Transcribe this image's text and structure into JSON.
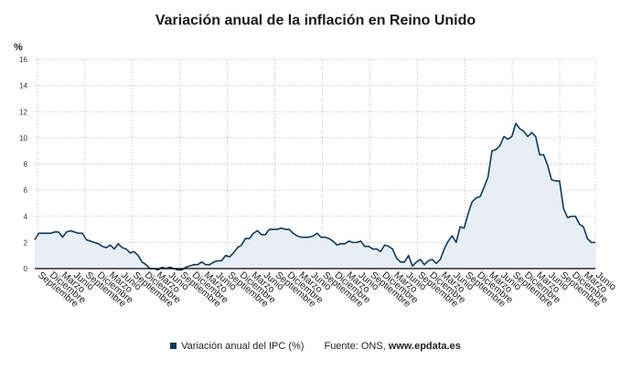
{
  "title": "Variación anual de la inflación en Reino Unido",
  "unit_label": "%",
  "legend": {
    "series_label": "Variación anual del IPC (%)",
    "source_prefix": "Fuente: ONS, ",
    "source_site": "www.epdata.es"
  },
  "colors": {
    "line": "#0d3a5c",
    "area": "#e7eef6",
    "grid": "#b5b5b5",
    "axis": "#000000"
  },
  "chart_data": {
    "type": "area",
    "title": "Variación anual de la inflación en Reino Unido",
    "xlabel": "",
    "ylabel": "%",
    "ylim": [
      0,
      16
    ],
    "yticks": [
      0,
      2,
      4,
      6,
      8,
      10,
      12,
      14,
      16
    ],
    "grid": true,
    "legend_position": "bottom",
    "x_tick_labels": [
      "Septiembre",
      "Diciembre",
      "Marzo",
      "Junio",
      "Septiembre",
      "Diciembre",
      "Marzo",
      "Junio",
      "Septiembre",
      "Diciembre",
      "Marzo",
      "Junio",
      "Septiembre",
      "Diciembre",
      "Marzo",
      "Junio",
      "Septiembre",
      "Diciembre",
      "Marzo",
      "Junio",
      "Septiembre",
      "Diciembre",
      "Marzo",
      "Junio",
      "Septiembre",
      "Diciembre",
      "Marzo",
      "Junio",
      "Septiembre",
      "Diciembre",
      "Marzo",
      "Junio",
      "Septiembre",
      "Diciembre",
      "Marzo",
      "Junio",
      "Septiembre",
      "Diciembre",
      "Marzo",
      "Junio",
      "Septiembre",
      "Diciembre",
      "Marzo",
      "Junio",
      "Septiembre",
      "Diciembre",
      "Marzo",
      "Junio"
    ],
    "series": [
      {
        "name": "Variación anual del IPC (%)",
        "values": [
          2.2,
          2.7,
          2.7,
          2.7,
          2.7,
          2.8,
          2.8,
          2.4,
          2.8,
          2.9,
          2.8,
          2.7,
          2.7,
          2.2,
          2.1,
          2.0,
          1.9,
          1.7,
          1.6,
          1.8,
          1.5,
          1.9,
          1.6,
          1.5,
          1.2,
          1.3,
          1.0,
          0.5,
          0.3,
          0.0,
          0.0,
          -0.1,
          0.1,
          0.0,
          0.1,
          0.0,
          -0.1,
          -0.1,
          0.1,
          0.2,
          0.3,
          0.3,
          0.5,
          0.3,
          0.3,
          0.5,
          0.6,
          0.6,
          1.0,
          0.9,
          1.2,
          1.6,
          1.8,
          2.3,
          2.3,
          2.7,
          2.9,
          2.6,
          2.6,
          3.0,
          3.0,
          3.0,
          3.1,
          3.0,
          3.0,
          2.7,
          2.5,
          2.4,
          2.4,
          2.4,
          2.5,
          2.7,
          2.4,
          2.4,
          2.3,
          2.1,
          1.8,
          1.9,
          1.9,
          2.1,
          2.0,
          2.0,
          2.1,
          1.7,
          1.7,
          1.5,
          1.5,
          1.3,
          1.8,
          1.7,
          1.5,
          0.8,
          0.5,
          0.5,
          1.0,
          0.2,
          0.5,
          0.7,
          0.3,
          0.6,
          0.7,
          0.4,
          0.7,
          1.5,
          2.1,
          2.5,
          2.0,
          3.2,
          3.1,
          4.2,
          5.1,
          5.4,
          5.5,
          6.2,
          7.0,
          9.0,
          9.1,
          9.4,
          10.1,
          9.9,
          10.1,
          11.1,
          10.7,
          10.5,
          10.1,
          10.4,
          10.1,
          8.7,
          8.7,
          7.9,
          6.8,
          6.7,
          6.7,
          4.6,
          3.9,
          4.0,
          4.0,
          3.4,
          3.2,
          2.3,
          2.0,
          2.0
        ]
      }
    ]
  }
}
